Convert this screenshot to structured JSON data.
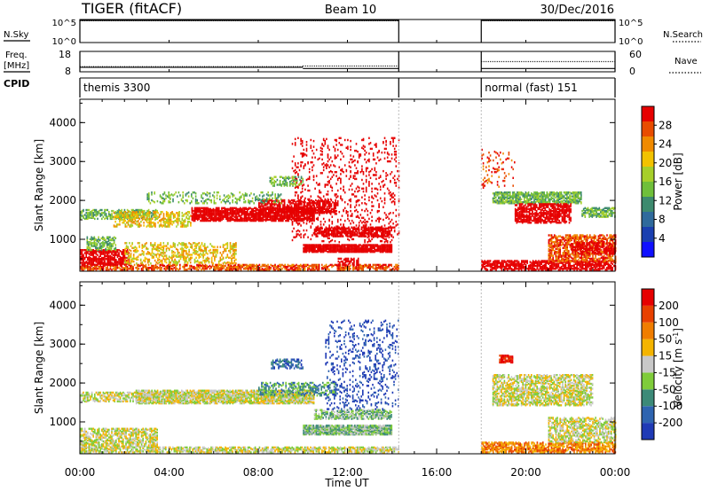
{
  "header": {
    "radar": "TIGER (fitACF)",
    "beam": "Beam 10",
    "date": "30/Dec/2016"
  },
  "sidebar_labels": {
    "nsky": "N.Sky",
    "freq_line1": "Freq.",
    "freq_line2": "[MHz]",
    "cpid": "CPID",
    "nsearch": "N.Search",
    "nave": "Nave"
  },
  "chart_data": [
    {
      "id": "noise-panel",
      "type": "line",
      "left_axis": {
        "ticks": [
          {
            "label": "10^0",
            "value": 0
          },
          {
            "label": "10^5",
            "value": 5
          }
        ],
        "scale": "log"
      },
      "right_axis": {
        "ticks": [
          {
            "label": "10^0",
            "value": 0
          },
          {
            "label": "10^5",
            "value": 5
          }
        ],
        "scale": "log"
      },
      "segments": [
        {
          "start": 0.0,
          "end": 14.3
        },
        {
          "start": 18.0,
          "end": 24.0
        }
      ],
      "series": [
        {
          "name": "N.Sky",
          "style": "solid",
          "level": 4.8
        },
        {
          "name": "N.Search",
          "style": "dotted",
          "level": 4.7
        }
      ]
    },
    {
      "id": "freq-panel",
      "type": "line",
      "left_axis": {
        "ticks": [
          "8",
          "18"
        ],
        "range": [
          8,
          18
        ],
        "label": "Freq. [MHz]"
      },
      "right_axis": {
        "ticks": [
          "0",
          "60"
        ],
        "range": [
          0,
          60
        ],
        "label": "Nave"
      },
      "freq_mhz": [
        {
          "start": 0.0,
          "end": 10.0,
          "value": 10.2
        },
        {
          "start": 10.0,
          "end": 14.3,
          "value": 9.6
        },
        {
          "start": 18.0,
          "end": 24.0,
          "value": 9.6
        }
      ],
      "nave": [
        {
          "start": 0.0,
          "end": 10.0,
          "value": 15
        },
        {
          "start": 10.0,
          "end": 14.3,
          "value": 17
        },
        {
          "start": 18.0,
          "end": 24.0,
          "value": 30
        }
      ],
      "cpid": [
        {
          "start": 0.0,
          "end": 14.3,
          "label": "themis 3300"
        },
        {
          "start": 18.0,
          "end": 24.0,
          "label": "normal (fast) 151"
        }
      ]
    },
    {
      "id": "power-rti",
      "type": "heatmap",
      "ylabel": "Slant Range [km]",
      "xlabel": "Time UT",
      "x_ticks": [
        "00:00",
        "04:00",
        "08:00",
        "12:00",
        "16:00",
        "20:00",
        "00:00"
      ],
      "x_range_hours": [
        0,
        24
      ],
      "y_range_km": [
        180,
        4600
      ],
      "y_ticks": [
        1000,
        2000,
        3000,
        4000
      ],
      "colorbar": {
        "label": "Power [dB]",
        "range": [
          0,
          32
        ],
        "ticks": [
          "4",
          "8",
          "12",
          "16",
          "20",
          "24",
          "28"
        ],
        "colors": [
          "#1010ff",
          "#1a3fb0",
          "#2f6a9c",
          "#3d8a6e",
          "#6fbf3a",
          "#a6cf2a",
          "#f2c200",
          "#f08a00",
          "#e84c00",
          "#e60000"
        ]
      },
      "features": [
        {
          "t0": 0.0,
          "t1": 14.3,
          "r0": 190,
          "r1": 320,
          "level": 8,
          "density": 0.55
        },
        {
          "t0": 0.0,
          "t1": 2.2,
          "r0": 320,
          "r1": 700,
          "level": 14,
          "density": 0.55
        },
        {
          "t0": 2.0,
          "t1": 7.0,
          "r0": 350,
          "r1": 900,
          "level": 6,
          "density": 0.3
        },
        {
          "t0": 0.3,
          "t1": 1.6,
          "r0": 700,
          "r1": 1050,
          "level": 4,
          "density": 0.5
        },
        {
          "t0": 0.0,
          "t1": 3.5,
          "r0": 1500,
          "r1": 1750,
          "level": 4,
          "density": 0.45
        },
        {
          "t0": 1.5,
          "t1": 5.0,
          "r0": 1300,
          "r1": 1700,
          "level": 6,
          "density": 0.35
        },
        {
          "t0": 5.0,
          "t1": 10.5,
          "r0": 1450,
          "r1": 1800,
          "level": 12,
          "density": 0.7
        },
        {
          "t0": 8.0,
          "t1": 11.5,
          "r0": 1650,
          "r1": 2000,
          "level": 16,
          "density": 0.5
        },
        {
          "t0": 3.0,
          "t1": 9.0,
          "r0": 1900,
          "r1": 2200,
          "level": 4,
          "density": 0.2
        },
        {
          "t0": 10.0,
          "t1": 14.0,
          "r0": 650,
          "r1": 850,
          "level": 24,
          "density": 0.85
        },
        {
          "t0": 10.5,
          "t1": 14.0,
          "r0": 1050,
          "r1": 1300,
          "level": 20,
          "density": 0.6
        },
        {
          "t0": 9.5,
          "t1": 14.3,
          "r0": 900,
          "r1": 3600,
          "level": 16,
          "density": 0.1
        },
        {
          "t0": 8.5,
          "t1": 10.0,
          "r0": 2350,
          "r1": 2600,
          "level": 4,
          "density": 0.35
        },
        {
          "t0": 11.5,
          "t1": 12.5,
          "r0": 300,
          "r1": 500,
          "level": 26,
          "density": 0.5
        },
        {
          "t0": 18.0,
          "t1": 24.0,
          "r0": 190,
          "r1": 420,
          "level": 10,
          "density": 0.6
        },
        {
          "t0": 18.5,
          "t1": 22.5,
          "r0": 1900,
          "r1": 2200,
          "level": 4,
          "density": 0.6
        },
        {
          "t0": 19.5,
          "t1": 22.0,
          "r0": 1400,
          "r1": 1900,
          "level": 10,
          "density": 0.55
        },
        {
          "t0": 21.0,
          "t1": 24.0,
          "r0": 400,
          "r1": 1100,
          "level": 8,
          "density": 0.5
        },
        {
          "t0": 22.0,
          "t1": 24.0,
          "r0": 600,
          "r1": 900,
          "level": 18,
          "density": 0.4
        },
        {
          "t0": 22.5,
          "t1": 24.0,
          "r0": 1550,
          "r1": 1800,
          "level": 4,
          "density": 0.55
        },
        {
          "t0": 18.0,
          "t1": 19.5,
          "r0": 2300,
          "r1": 3300,
          "level": 8,
          "density": 0.08
        }
      ]
    },
    {
      "id": "velocity-rti",
      "type": "heatmap",
      "ylabel": "Slant Range [km]",
      "xlabel": "Time UT",
      "x_ticks": [
        "00:00",
        "04:00",
        "08:00",
        "12:00",
        "16:00",
        "20:00",
        "00:00"
      ],
      "x_range_hours": [
        0,
        24
      ],
      "y_range_km": [
        180,
        4600
      ],
      "y_ticks": [
        1000,
        2000,
        3000,
        4000
      ],
      "colorbar": {
        "label": "Velocity [m s^-1]",
        "ticks": [
          "200",
          "100",
          "50",
          "15",
          "-15",
          "-50",
          "-100",
          "-200"
        ],
        "colors": [
          "#1f3ab5",
          "#2e64b0",
          "#3c8a78",
          "#7fcc3a",
          "#c8c8c8",
          "#f4b400",
          "#f07d00",
          "#e84000",
          "#e60000"
        ]
      },
      "features": [
        {
          "t0": 0.0,
          "t1": 14.3,
          "r0": 190,
          "r1": 320,
          "level": 4,
          "density": 0.55
        },
        {
          "t0": 0.0,
          "t1": 3.5,
          "r0": 320,
          "r1": 800,
          "level": 4,
          "density": 0.5
        },
        {
          "t0": 0.0,
          "t1": 3.5,
          "r0": 1500,
          "r1": 1750,
          "level": 4,
          "density": 0.45
        },
        {
          "t0": 2.5,
          "t1": 10.5,
          "r0": 1450,
          "r1": 1800,
          "level": 4,
          "density": 0.7
        },
        {
          "t0": 8.0,
          "t1": 11.5,
          "r0": 1650,
          "r1": 2000,
          "level": 2,
          "density": 0.35
        },
        {
          "t0": 10.0,
          "t1": 14.0,
          "r0": 650,
          "r1": 900,
          "level": 3,
          "density": 0.85
        },
        {
          "t0": 10.5,
          "t1": 14.0,
          "r0": 1050,
          "r1": 1300,
          "level": 3,
          "density": 0.5
        },
        {
          "t0": 11.0,
          "t1": 14.3,
          "r0": 1300,
          "r1": 3600,
          "level": 0,
          "density": 0.12
        },
        {
          "t0": 8.5,
          "t1": 10.0,
          "r0": 2350,
          "r1": 2600,
          "level": 1,
          "density": 0.35
        },
        {
          "t0": 18.0,
          "t1": 24.0,
          "r0": 190,
          "r1": 450,
          "level": 6,
          "density": 0.55
        },
        {
          "t0": 18.5,
          "t1": 23.0,
          "r0": 1400,
          "r1": 2200,
          "level": 4,
          "density": 0.5
        },
        {
          "t0": 21.0,
          "t1": 24.0,
          "r0": 450,
          "r1": 1100,
          "level": 4,
          "density": 0.45
        },
        {
          "t0": 18.8,
          "t1": 19.4,
          "r0": 2500,
          "r1": 2700,
          "level": 8,
          "density": 0.8
        }
      ]
    }
  ]
}
